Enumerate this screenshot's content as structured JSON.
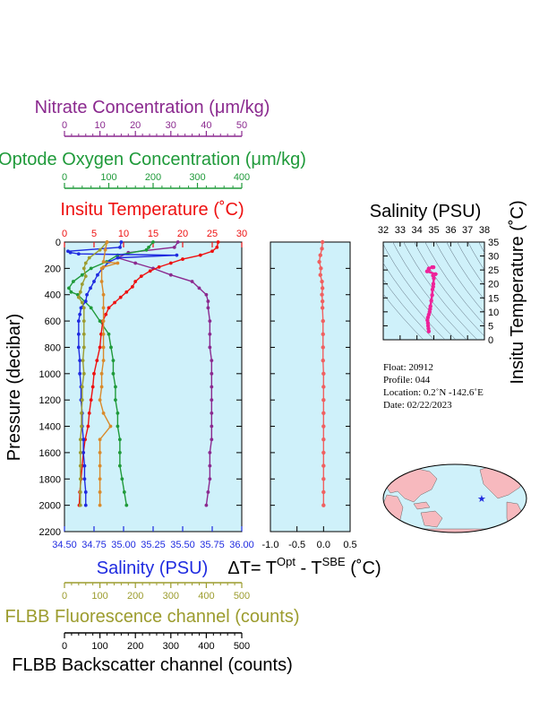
{
  "colors": {
    "nitrate": "#8B2A8F",
    "oxygen": "#1F9A3A",
    "temperature": "#EE1111",
    "salinity": "#1F2BE0",
    "fluorescence": "#9C9C2E",
    "backscatter": "#D98A2B",
    "delta": "#F06060",
    "plot_bg": "#CFF1FA",
    "map_land": "#F7B9BE",
    "map_ocean": "#CFF1FA",
    "ts_track": "#EE2299",
    "black": "#000000"
  },
  "axes": {
    "nitrate": {
      "label": "Nitrate Concentration (μm/kg)",
      "range": [
        0,
        50
      ],
      "ticks": [
        "0",
        "10",
        "20",
        "30",
        "40",
        "50"
      ]
    },
    "oxygen": {
      "label": "Optode Oxygen Concentration (μm/kg)",
      "range": [
        0,
        400
      ],
      "ticks": [
        "0",
        "100",
        "200",
        "300",
        "400"
      ]
    },
    "temperature": {
      "label": "Insitu Temperature (˚C)",
      "range": [
        0,
        30
      ],
      "ticks": [
        "0",
        "5",
        "10",
        "15",
        "20",
        "25",
        "30"
      ]
    },
    "pressure": {
      "label": "Pressure (decibar)",
      "range": [
        0,
        2200
      ],
      "ticks": [
        "0",
        "200",
        "400",
        "600",
        "800",
        "1000",
        "1200",
        "1400",
        "1600",
        "1800",
        "2000",
        "2200"
      ]
    },
    "salinity": {
      "label": "Salinity (PSU)",
      "range": [
        34.5,
        36.0
      ],
      "ticks": [
        "34.50",
        "34.75",
        "35.00",
        "35.25",
        "35.50",
        "35.75",
        "36.00"
      ]
    },
    "fluorescence": {
      "label": "FLBB Fluorescence channel (counts)",
      "range": [
        0,
        500
      ],
      "ticks": [
        "0",
        "100",
        "200",
        "300",
        "400",
        "500"
      ]
    },
    "backscatter": {
      "label": "FLBB Backscatter channel (counts)",
      "range": [
        0,
        500
      ],
      "ticks": [
        "0",
        "100",
        "200",
        "300",
        "400",
        "500"
      ]
    },
    "delta": {
      "label_main": "ΔT= T",
      "label_sup1": "Opt",
      "label_mid": " - T",
      "label_sup2": "SBE",
      "label_end": " (˚C)",
      "range": [
        -1.0,
        0.5
      ],
      "ticks": [
        "-1.0",
        "-0.5",
        "0.0",
        "0.5"
      ]
    }
  },
  "ts_plot": {
    "salinity_label": "Salinity (PSU)",
    "temperature_label": "Insitu Temperature (˚C)",
    "salinity_ticks": [
      "32",
      "33",
      "34",
      "35",
      "36",
      "37",
      "38"
    ],
    "temperature_ticks": [
      "0",
      "5",
      "10",
      "15",
      "20",
      "25",
      "30",
      "35"
    ]
  },
  "info": {
    "float": "Float:  20912",
    "profile": "Profile:  044",
    "location": "Location:  0.2˚N  -142.6˚E",
    "date": "Date:  02/22/2023"
  },
  "chart_data": {
    "type": "line",
    "grid": false,
    "series": [
      {
        "name": "Nitrate Concentration",
        "axis": "nitrate",
        "points": [
          [
            32,
            0
          ],
          [
            31,
            40
          ],
          [
            18,
            80
          ],
          [
            15,
            120
          ],
          [
            20,
            160
          ],
          [
            25,
            200
          ],
          [
            30,
            250
          ],
          [
            36,
            300
          ],
          [
            38,
            350
          ],
          [
            40,
            400
          ],
          [
            40.5,
            450
          ],
          [
            40.5,
            500
          ],
          [
            41,
            600
          ],
          [
            41,
            700
          ],
          [
            41,
            800
          ],
          [
            41.5,
            900
          ],
          [
            41.5,
            1000
          ],
          [
            41.5,
            1100
          ],
          [
            41.5,
            1200
          ],
          [
            41.5,
            1300
          ],
          [
            41.5,
            1400
          ],
          [
            41.5,
            1500
          ],
          [
            41,
            1600
          ],
          [
            41,
            1700
          ],
          [
            41,
            1800
          ],
          [
            40.5,
            1900
          ],
          [
            40,
            2000
          ]
        ]
      },
      {
        "name": "Optode Oxygen Concentration",
        "axis": "oxygen",
        "points": [
          [
            200,
            0
          ],
          [
            190,
            40
          ],
          [
            185,
            60
          ],
          [
            120,
            100
          ],
          [
            95,
            150
          ],
          [
            60,
            200
          ],
          [
            40,
            250
          ],
          [
            20,
            300
          ],
          [
            10,
            350
          ],
          [
            15,
            380
          ],
          [
            30,
            400
          ],
          [
            60,
            500
          ],
          [
            80,
            600
          ],
          [
            100,
            700
          ],
          [
            105,
            800
          ],
          [
            110,
            900
          ],
          [
            110,
            1000
          ],
          [
            115,
            1100
          ],
          [
            115,
            1200
          ],
          [
            120,
            1300
          ],
          [
            120,
            1400
          ],
          [
            125,
            1500
          ],
          [
            125,
            1600
          ],
          [
            125,
            1700
          ],
          [
            130,
            1800
          ],
          [
            135,
            1900
          ],
          [
            140,
            2000
          ]
        ]
      },
      {
        "name": "Insitu Temperature",
        "axis": "temperature",
        "points": [
          [
            26.0,
            0
          ],
          [
            25.8,
            40
          ],
          [
            25.0,
            70
          ],
          [
            23.0,
            100
          ],
          [
            20.0,
            130
          ],
          [
            18.0,
            160
          ],
          [
            16.0,
            190
          ],
          [
            14.5,
            220
          ],
          [
            13.0,
            260
          ],
          [
            12.0,
            300
          ],
          [
            11.5,
            340
          ],
          [
            10.5,
            380
          ],
          [
            9.5,
            420
          ],
          [
            8.5,
            460
          ],
          [
            7.5,
            500
          ],
          [
            7.0,
            550
          ],
          [
            6.5,
            600
          ],
          [
            6.2,
            700
          ],
          [
            6.0,
            800
          ],
          [
            5.5,
            900
          ],
          [
            5.0,
            1000
          ],
          [
            4.8,
            1100
          ],
          [
            4.5,
            1200
          ],
          [
            4.2,
            1300
          ],
          [
            4.0,
            1400
          ],
          [
            3.5,
            1500
          ],
          [
            3.2,
            1600
          ],
          [
            3.0,
            1700
          ],
          [
            2.8,
            1800
          ],
          [
            2.6,
            1900
          ],
          [
            2.5,
            2000
          ]
        ]
      },
      {
        "name": "Salinity",
        "axis": "salinity",
        "points": [
          [
            34.98,
            0
          ],
          [
            34.97,
            40
          ],
          [
            34.53,
            70
          ],
          [
            34.55,
            80
          ],
          [
            34.62,
            90
          ],
          [
            35.45,
            100
          ],
          [
            34.95,
            120
          ],
          [
            34.88,
            150
          ],
          [
            34.82,
            200
          ],
          [
            34.78,
            250
          ],
          [
            34.75,
            300
          ],
          [
            34.72,
            350
          ],
          [
            34.69,
            400
          ],
          [
            34.68,
            450
          ],
          [
            34.64,
            500
          ],
          [
            34.63,
            550
          ],
          [
            34.62,
            600
          ],
          [
            34.62,
            700
          ],
          [
            34.62,
            800
          ],
          [
            34.63,
            900
          ],
          [
            34.63,
            1000
          ],
          [
            34.64,
            1100
          ],
          [
            34.64,
            1200
          ],
          [
            34.65,
            1300
          ],
          [
            34.65,
            1400
          ],
          [
            34.66,
            1500
          ],
          [
            34.66,
            1600
          ],
          [
            34.67,
            1700
          ],
          [
            34.67,
            1800
          ],
          [
            34.68,
            1900
          ],
          [
            34.68,
            2000
          ]
        ]
      },
      {
        "name": "FLBB Fluorescence channel",
        "axis": "fluorescence",
        "points": [
          [
            120,
            0
          ],
          [
            100,
            60
          ],
          [
            70,
            120
          ],
          [
            60,
            160
          ],
          [
            55,
            200
          ],
          [
            60,
            260
          ],
          [
            50,
            320
          ],
          [
            45,
            380
          ],
          [
            40,
            420
          ],
          [
            50,
            460
          ],
          [
            55,
            500
          ],
          [
            55,
            600
          ],
          [
            55,
            700
          ],
          [
            55,
            800
          ],
          [
            52,
            900
          ],
          [
            55,
            1000
          ],
          [
            50,
            1100
          ],
          [
            50,
            1200
          ],
          [
            48,
            1300
          ],
          [
            48,
            1400
          ],
          [
            45,
            1500
          ],
          [
            45,
            1600
          ],
          [
            45,
            1700
          ],
          [
            45,
            1800
          ],
          [
            45,
            1900
          ],
          [
            45,
            2000
          ]
        ]
      },
      {
        "name": "FLBB Backscatter channel",
        "axis": "backscatter",
        "points": [
          [
            120,
            0
          ],
          [
            115,
            60
          ],
          [
            110,
            150
          ],
          [
            150,
            160
          ],
          [
            110,
            190
          ],
          [
            105,
            200
          ],
          [
            105,
            300
          ],
          [
            110,
            400
          ],
          [
            110,
            500
          ],
          [
            110,
            600
          ],
          [
            110,
            700
          ],
          [
            110,
            800
          ],
          [
            110,
            900
          ],
          [
            105,
            1000
          ],
          [
            105,
            1100
          ],
          [
            100,
            1200
          ],
          [
            110,
            1300
          ],
          [
            130,
            1400
          ],
          [
            100,
            1500
          ],
          [
            100,
            1600
          ],
          [
            100,
            1700
          ],
          [
            100,
            1800
          ],
          [
            100,
            1900
          ],
          [
            100,
            2000
          ]
        ]
      },
      {
        "name": "Delta T",
        "axis": "delta",
        "points": [
          [
            -0.02,
            0
          ],
          [
            -0.03,
            50
          ],
          [
            -0.06,
            100
          ],
          [
            -0.08,
            150
          ],
          [
            -0.05,
            200
          ],
          [
            -0.06,
            250
          ],
          [
            -0.03,
            300
          ],
          [
            -0.02,
            350
          ],
          [
            -0.03,
            400
          ],
          [
            -0.02,
            450
          ],
          [
            -0.02,
            500
          ],
          [
            -0.01,
            600
          ],
          [
            -0.01,
            700
          ],
          [
            -0.01,
            800
          ],
          [
            -0.01,
            900
          ],
          [
            0.0,
            1000
          ],
          [
            0.0,
            1100
          ],
          [
            0.0,
            1200
          ],
          [
            0.0,
            1300
          ],
          [
            0.0,
            1400
          ],
          [
            0.0,
            1500
          ],
          [
            0.0,
            1600
          ],
          [
            0.0,
            1700
          ],
          [
            0.0,
            1800
          ],
          [
            0.0,
            1900
          ],
          [
            0.0,
            2000
          ]
        ]
      }
    ],
    "ts_points": [
      [
        34.7,
        3
      ],
      [
        34.68,
        4
      ],
      [
        34.66,
        5
      ],
      [
        34.65,
        6
      ],
      [
        34.62,
        7
      ],
      [
        34.65,
        8
      ],
      [
        34.7,
        9
      ],
      [
        34.75,
        10
      ],
      [
        34.78,
        11
      ],
      [
        34.8,
        12
      ],
      [
        34.85,
        14
      ],
      [
        34.9,
        16
      ],
      [
        34.92,
        18
      ],
      [
        34.96,
        19
      ],
      [
        34.97,
        20
      ],
      [
        35.0,
        22
      ],
      [
        34.95,
        23
      ],
      [
        35.1,
        23.5
      ],
      [
        34.6,
        24.5
      ],
      [
        34.7,
        25
      ],
      [
        34.7,
        25.5
      ],
      [
        34.9,
        26
      ],
      [
        34.98,
        26
      ]
    ],
    "ts_ranges": {
      "salinity": [
        32,
        38
      ],
      "temperature": [
        0,
        35
      ]
    },
    "map_marker": {
      "lat": 0.2,
      "lon": -142.6
    }
  }
}
